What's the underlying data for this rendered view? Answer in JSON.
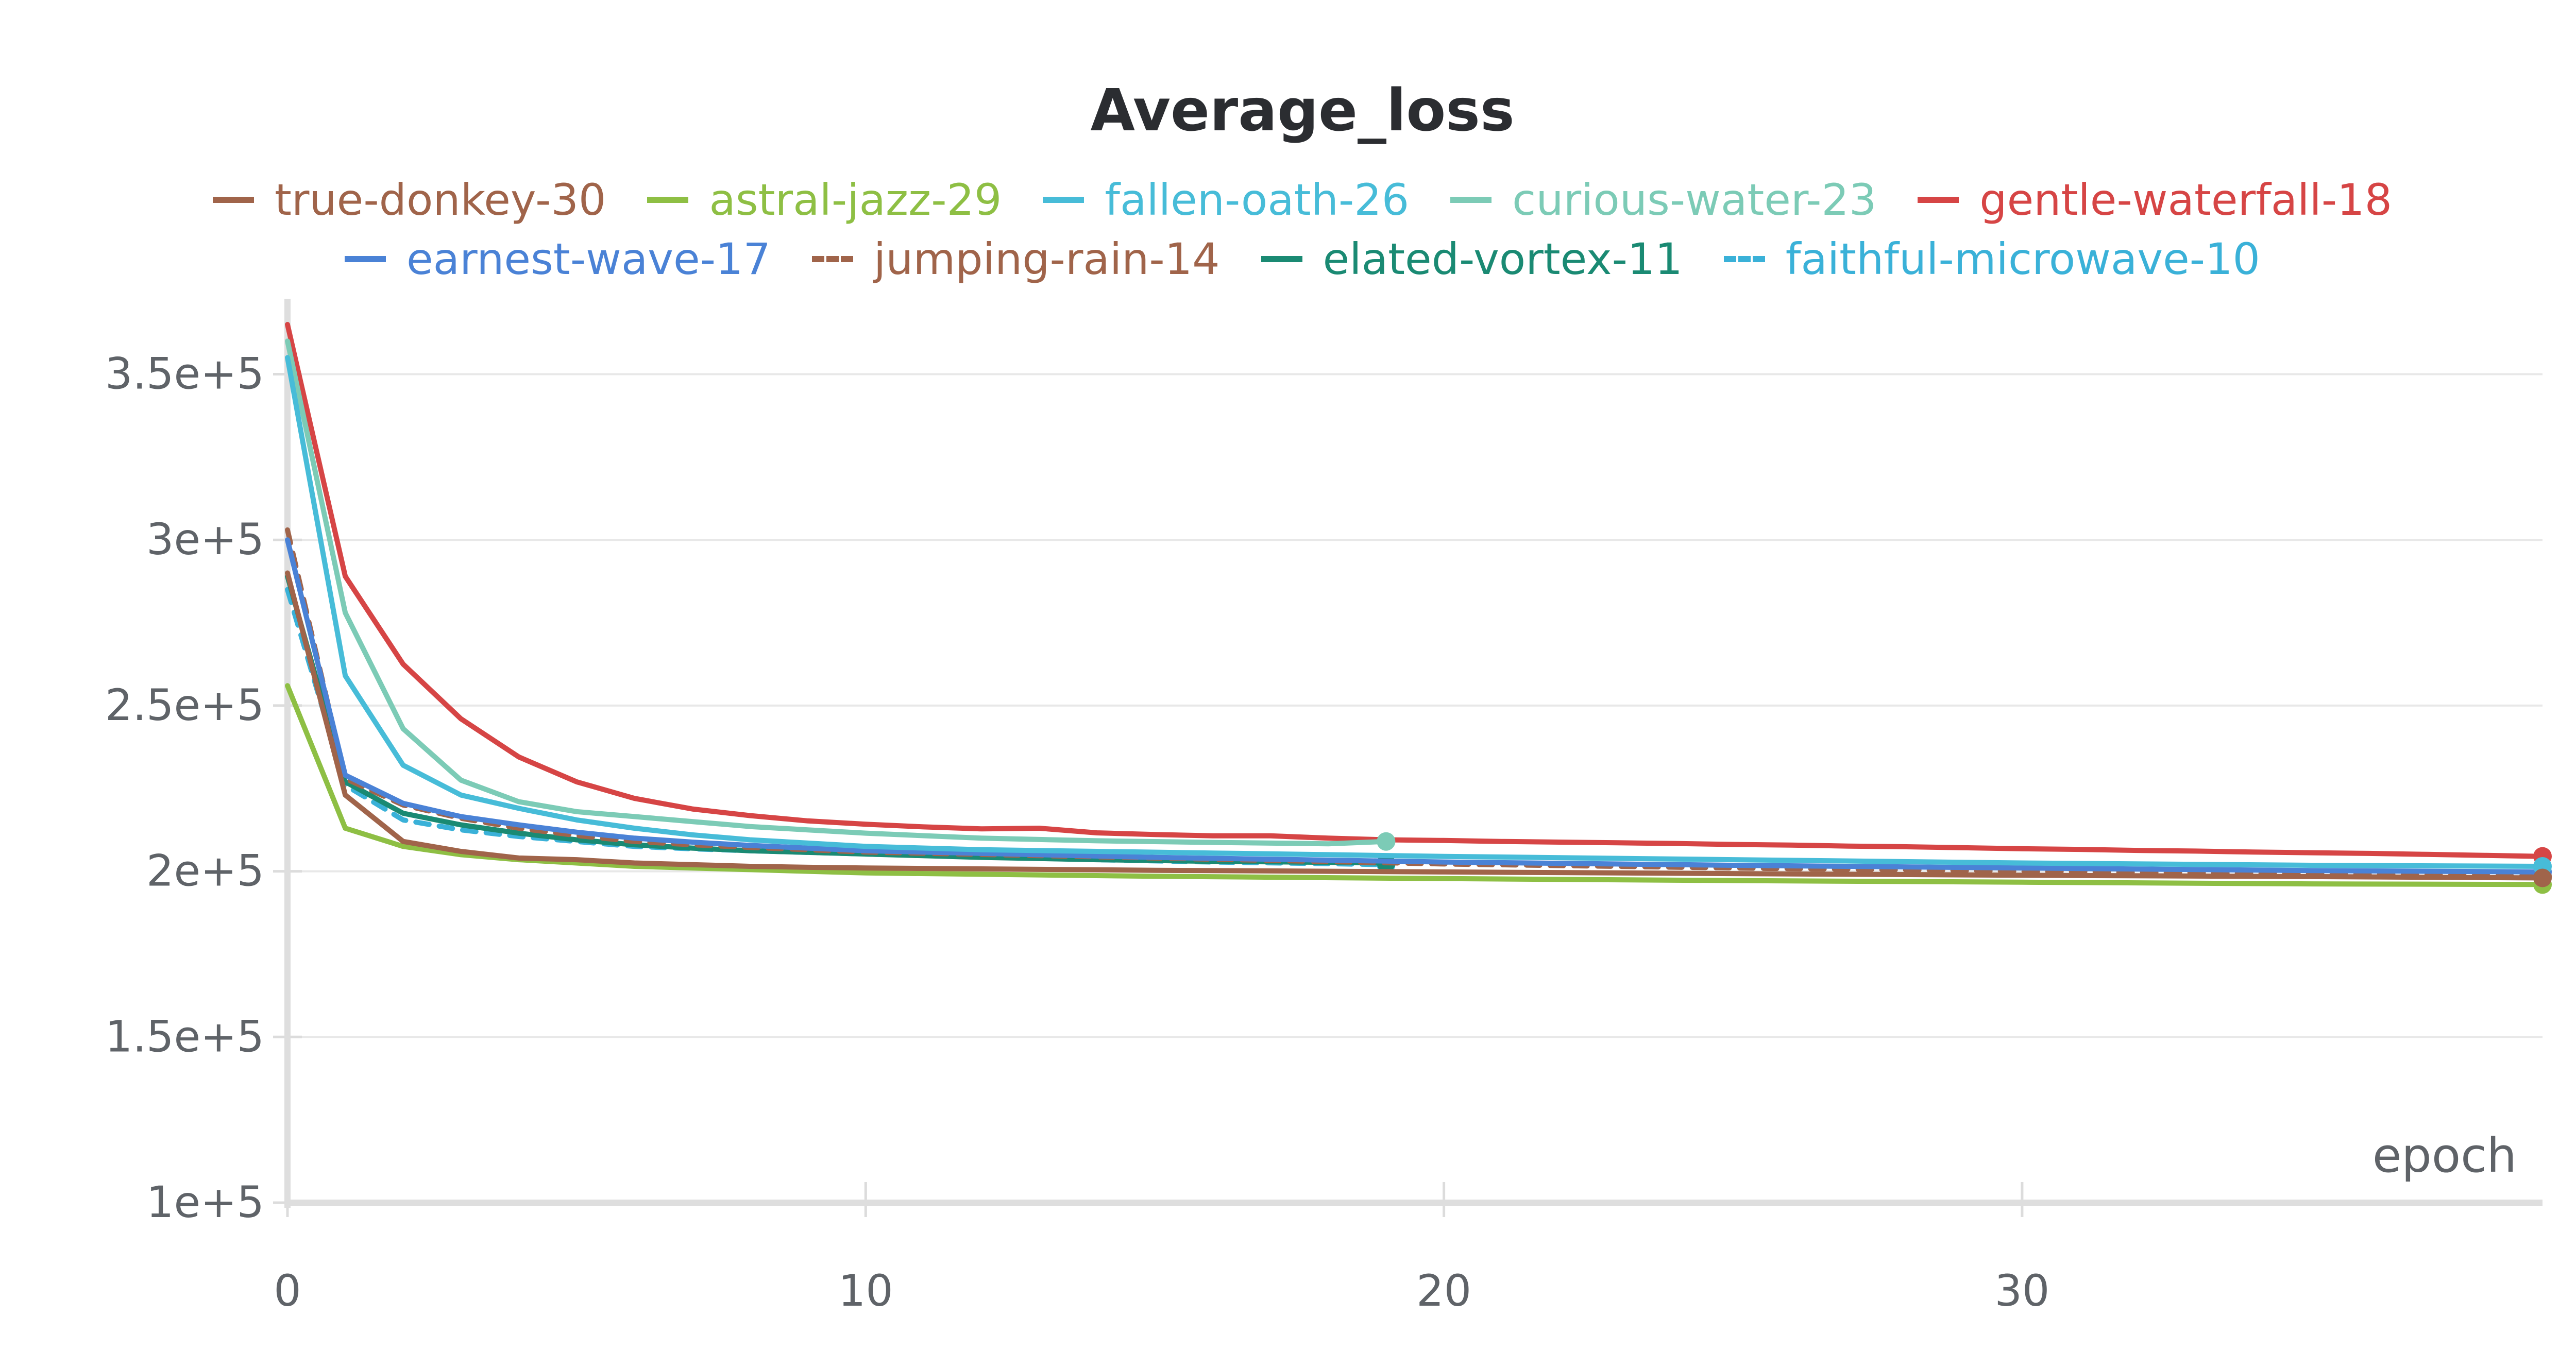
{
  "chart_data": {
    "type": "line",
    "title": "Average_loss",
    "xlabel": "epoch",
    "ylabel": "",
    "xlim": [
      0,
      39
    ],
    "ylim": [
      100000,
      365000
    ],
    "x_ticks": [
      0,
      10,
      20,
      30
    ],
    "x_tick_labels": [
      "0",
      "10",
      "20",
      "30"
    ],
    "y_ticks": [
      100000,
      150000,
      200000,
      250000,
      300000,
      350000
    ],
    "y_tick_labels": [
      "1e+5",
      "1.5e+5",
      "2e+5",
      "2.5e+5",
      "3e+5",
      "3.5e+5"
    ],
    "grid": true,
    "legend_position": "top",
    "legend_rows": [
      [
        0,
        1,
        2,
        3,
        4
      ],
      [
        5,
        6,
        7,
        8
      ]
    ],
    "series": [
      {
        "name": "true-donkey-30",
        "color": "#a0644a",
        "dash": false,
        "x": [
          0,
          1,
          2,
          3,
          4,
          5,
          6,
          7,
          8,
          9,
          10,
          15,
          20,
          25,
          30,
          35,
          39
        ],
        "y": [
          290000,
          223000,
          209000,
          206000,
          204000,
          203500,
          202500,
          202000,
          201500,
          201200,
          201000,
          200300,
          199800,
          199300,
          198800,
          198400,
          198000
        ]
      },
      {
        "name": "astral-jazz-29",
        "color": "#8ebf44",
        "dash": false,
        "x": [
          0,
          1,
          2,
          3,
          4,
          5,
          6,
          7,
          8,
          9,
          10,
          15,
          20,
          25,
          30,
          35,
          39
        ],
        "y": [
          256000,
          213000,
          207500,
          205000,
          203500,
          202500,
          201500,
          201000,
          200500,
          200000,
          199500,
          198500,
          197800,
          197200,
          196700,
          196200,
          196000
        ]
      },
      {
        "name": "fallen-oath-26",
        "color": "#47bcd8",
        "dash": false,
        "x": [
          0,
          1,
          2,
          3,
          4,
          5,
          6,
          7,
          8,
          9,
          10,
          12,
          14,
          16,
          18,
          20,
          25,
          30,
          35,
          39
        ],
        "y": [
          355000,
          259000,
          232000,
          223000,
          219000,
          215500,
          213000,
          211000,
          209500,
          208500,
          207500,
          206500,
          206000,
          205500,
          205000,
          204500,
          203500,
          202500,
          201800,
          201500
        ]
      },
      {
        "name": "curious-water-23",
        "color": "#7ccbb6",
        "dash": false,
        "x": [
          0,
          1,
          2,
          3,
          4,
          5,
          6,
          7,
          8,
          9,
          10,
          12,
          14,
          16,
          18,
          19
        ],
        "y": [
          360000,
          278000,
          243000,
          227500,
          221000,
          218000,
          216500,
          215000,
          213500,
          212500,
          211500,
          210000,
          209200,
          208700,
          208300,
          209000
        ]
      },
      {
        "name": "gentle-waterfall-18",
        "color": "#d64545",
        "dash": false,
        "x": [
          0,
          1,
          2,
          3,
          4,
          5,
          6,
          7,
          8,
          9,
          10,
          11,
          12,
          13,
          14,
          15,
          16,
          17,
          18,
          19,
          20,
          21,
          22,
          23,
          24,
          25,
          26,
          27,
          28,
          29,
          30,
          31,
          32,
          33,
          34,
          35,
          36,
          37,
          38,
          39
        ],
        "y": [
          365000,
          289000,
          262500,
          246000,
          234500,
          227000,
          222000,
          218800,
          216800,
          215200,
          214200,
          213400,
          212800,
          213000,
          211600,
          211100,
          210700,
          210700,
          210000,
          209500,
          209300,
          209000,
          208800,
          208600,
          208400,
          208100,
          207900,
          207600,
          207400,
          207100,
          206800,
          206600,
          206300,
          206100,
          205800,
          205600,
          205400,
          205100,
          204800,
          204500
        ]
      },
      {
        "name": "earnest-wave-17",
        "color": "#4a82d6",
        "dash": false,
        "x": [
          0,
          1,
          2,
          3,
          4,
          5,
          6,
          7,
          8,
          9,
          10,
          15,
          20,
          25,
          30,
          35,
          39
        ],
        "y": [
          300000,
          229000,
          220500,
          216500,
          214000,
          211800,
          210000,
          208800,
          207800,
          207000,
          206200,
          204200,
          202800,
          201800,
          201000,
          200200,
          199800
        ]
      },
      {
        "name": "jumping-rain-14",
        "color": "#a0644a",
        "dash": true,
        "x": [
          0,
          1,
          2,
          3,
          4,
          5,
          6,
          7,
          8,
          9,
          10,
          15,
          20,
          25,
          30,
          35,
          39
        ],
        "y": [
          303000,
          228000,
          220000,
          216000,
          213000,
          210800,
          209000,
          208000,
          207200,
          206500,
          205800,
          204000,
          202200,
          201000,
          200000,
          199200,
          198500
        ]
      },
      {
        "name": "elated-vortex-11",
        "color": "#1a8a73",
        "dash": false,
        "x": [
          0,
          1,
          2,
          3,
          4,
          5,
          6,
          7,
          8,
          9,
          10,
          12,
          14,
          16,
          18,
          19
        ],
        "y": [
          289000,
          227000,
          217500,
          214000,
          211500,
          209500,
          208000,
          207000,
          206200,
          205700,
          205200,
          204200,
          203500,
          203000,
          202700,
          202500
        ]
      },
      {
        "name": "faithful-microwave-10",
        "color": "#3ab1d8",
        "dash": true,
        "x": [
          0,
          1,
          2,
          3,
          4,
          5,
          6,
          7,
          8,
          9,
          10,
          12,
          14,
          16,
          18,
          19
        ],
        "y": [
          285000,
          226000,
          215500,
          212500,
          210500,
          209000,
          207500,
          206800,
          206200,
          205700,
          205200,
          204300,
          203500,
          202800,
          202300,
          202000
        ]
      }
    ]
  }
}
